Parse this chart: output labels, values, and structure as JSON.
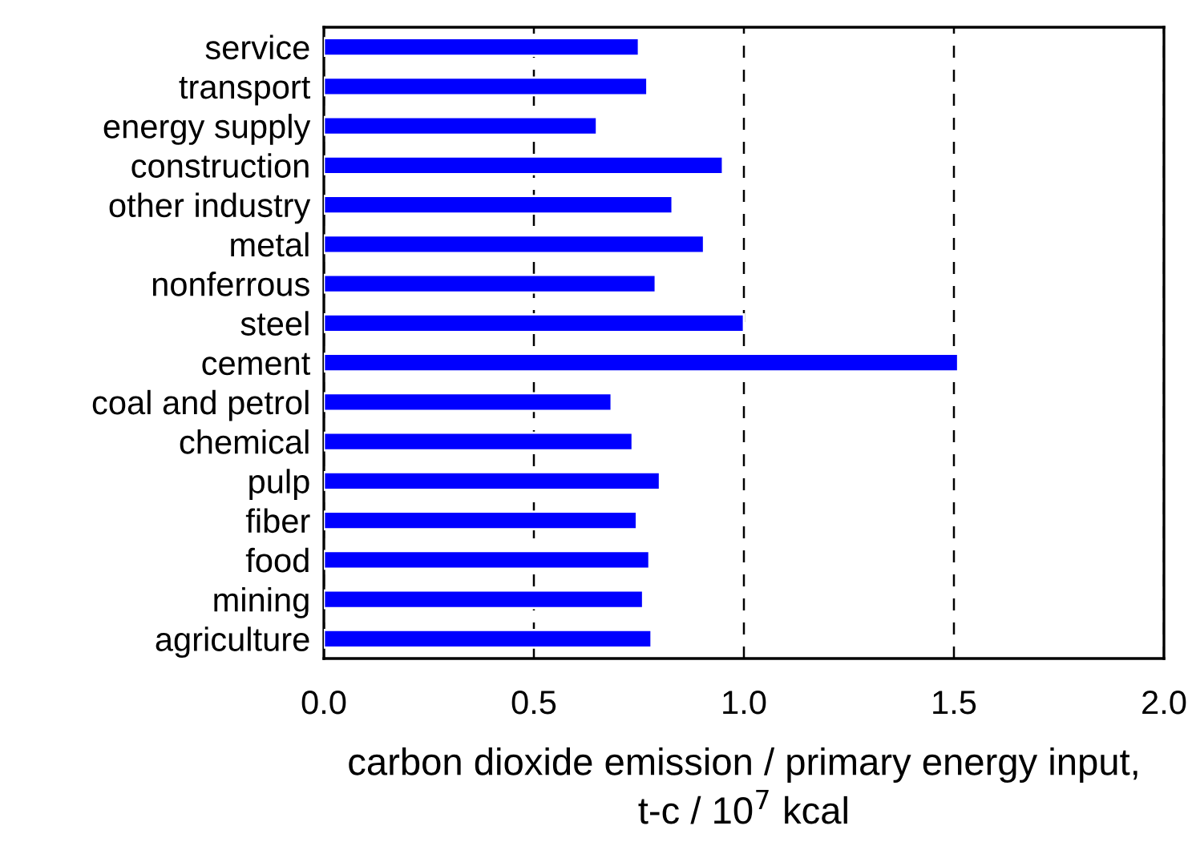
{
  "chart_data": {
    "type": "bar",
    "orientation": "horizontal",
    "categories": [
      "service",
      "transport",
      "energy supply",
      "construction",
      "other industry",
      "metal",
      "nonferrous",
      "steel",
      "cement",
      "coal and petrol",
      "chemical",
      "pulp",
      "fiber",
      "food",
      "mining",
      "agriculture"
    ],
    "values": [
      0.75,
      0.77,
      0.65,
      0.95,
      0.83,
      0.905,
      0.79,
      1.0,
      1.51,
      0.685,
      0.735,
      0.8,
      0.745,
      0.775,
      0.76,
      0.78
    ],
    "color": "#0000ff",
    "xlabel": "carbon dioxide emission / primary energy input,\nt-c / 10$^{7}$ kcal",
    "xlim": [
      0,
      2
    ],
    "xticks": [
      {
        "value": 0,
        "label": "0.0"
      },
      {
        "value": 0.5,
        "label": "0.5"
      },
      {
        "value": 1,
        "label": "1.0"
      },
      {
        "value": 1.5,
        "label": "1.5"
      },
      {
        "value": 2,
        "label": "2.0"
      }
    ],
    "grid": "x"
  }
}
